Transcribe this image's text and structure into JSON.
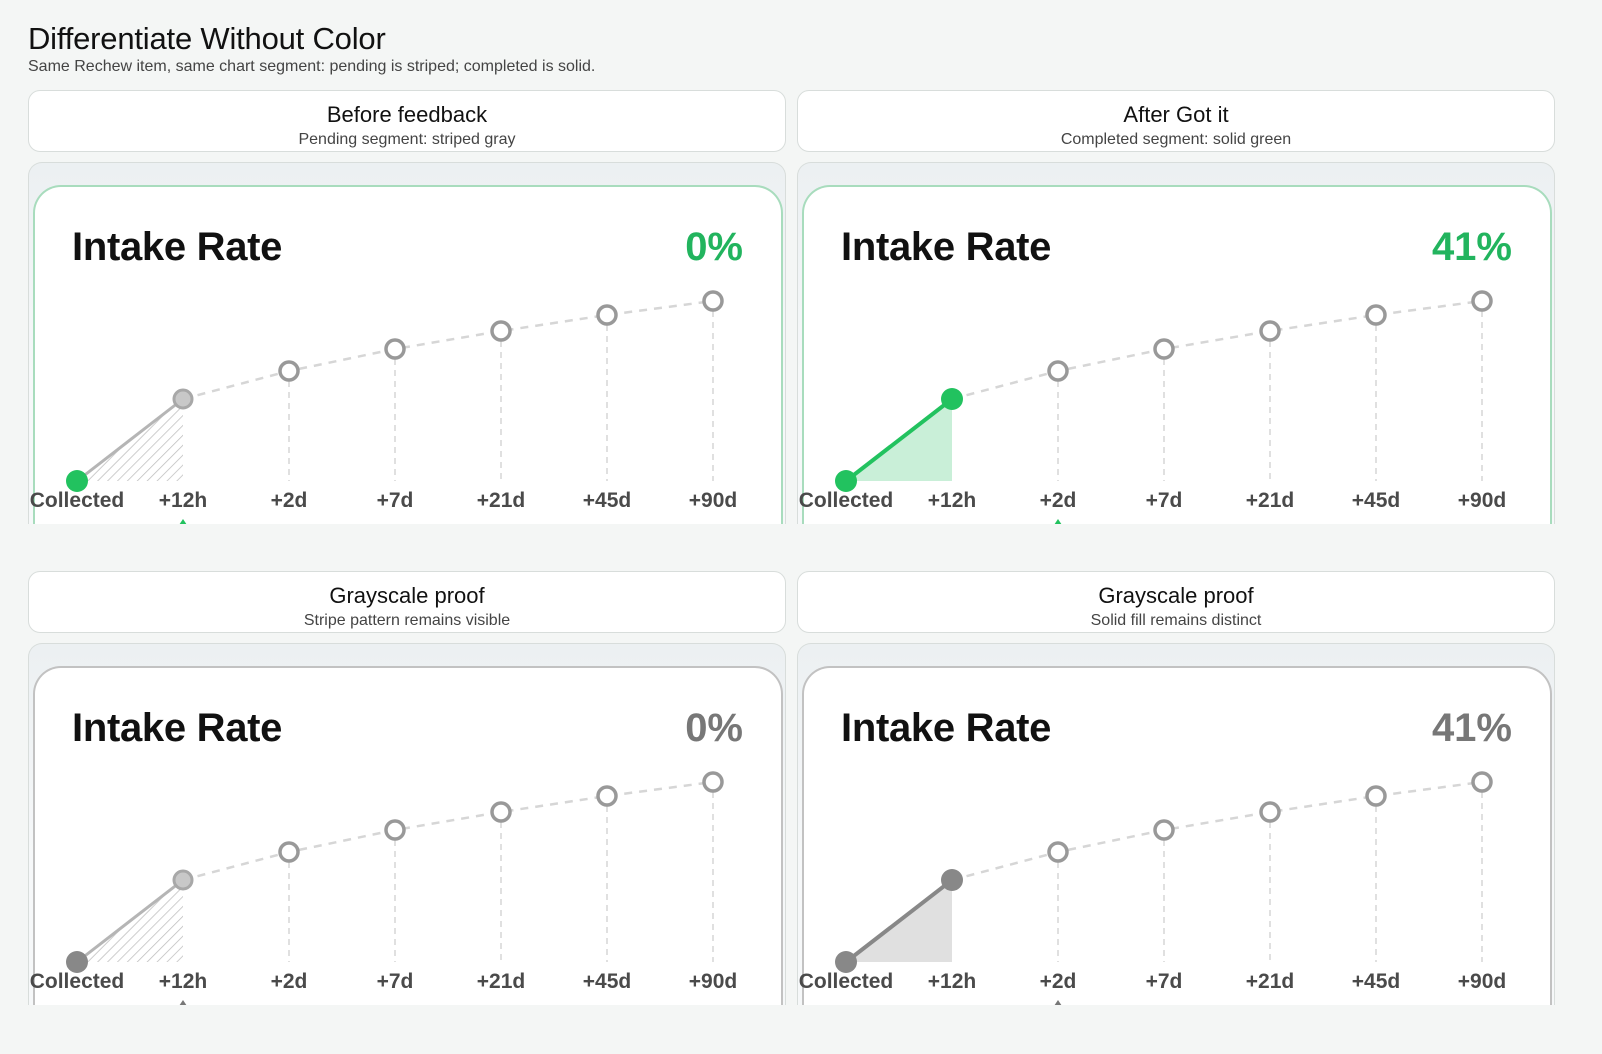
{
  "page": {
    "title": "Differentiate Without Color",
    "subtitle": "Same Rechew item, same chart segment: pending is striped; completed is solid."
  },
  "panels": [
    {
      "title": "Before feedback",
      "subtitle": "Pending segment: striped gray",
      "card_title": "Intake Rate",
      "value": "0%",
      "segment_state": "pending",
      "fill_style": "striped",
      "palette": "color"
    },
    {
      "title": "After Got it",
      "subtitle": "Completed segment: solid green",
      "card_title": "Intake Rate",
      "value": "41%",
      "segment_state": "completed",
      "fill_style": "solid",
      "palette": "color"
    },
    {
      "title": "Grayscale proof",
      "subtitle": "Stripe pattern remains visible",
      "card_title": "Intake Rate",
      "value": "0%",
      "segment_state": "pending",
      "fill_style": "striped",
      "palette": "grayscale"
    },
    {
      "title": "Grayscale proof",
      "subtitle": "Solid fill remains distinct",
      "card_title": "Intake Rate",
      "value": "41%",
      "segment_state": "completed",
      "fill_style": "solid",
      "palette": "grayscale"
    }
  ],
  "chart_data": {
    "type": "line",
    "categories": [
      "Collected",
      "+12h",
      "+2d",
      "+7d",
      "+21d",
      "+45d",
      "+90d"
    ],
    "relative_progress": [
      0,
      0.41,
      0.55,
      0.66,
      0.75,
      0.83,
      0.9
    ],
    "highlighted_segment": [
      "Collected",
      "+12h"
    ]
  },
  "colors": {
    "accent_green": "#22c25f",
    "green_fill": "#c9efd8",
    "gray_point": "#999999",
    "gray_marker": "#888888",
    "gray_fill": "#e0e0e0",
    "stripe": "#bdbdbd",
    "dashed_line": "#d6d6d6",
    "card_border_green": "#a8dcbd",
    "card_border_gray": "#c2c2c2"
  }
}
